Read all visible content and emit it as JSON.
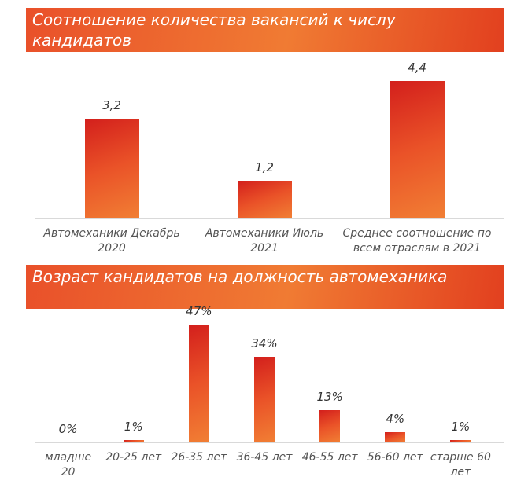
{
  "chart_data": [
    {
      "type": "bar",
      "title": "Соотношение количества вакансий к числу кандидатов",
      "categories": [
        "Автомеханики Декабрь 2020",
        "Автомеханики Июль 2021",
        "Среднее соотношение по всем отраслям в 2021"
      ],
      "values": [
        3.2,
        1.2,
        4.4
      ],
      "value_labels": [
        "3,2",
        "1,2",
        "4,4"
      ]
    },
    {
      "type": "bar",
      "title": "Возраст кандидатов на должность автомеханика",
      "categories": [
        "младше 20",
        "20-25 лет",
        "26-35 лет",
        "36-45 лет",
        "46-55 лет",
        "56-60 лет",
        "старше 60 лет"
      ],
      "values": [
        0,
        1,
        47,
        34,
        13,
        4,
        1
      ],
      "value_labels": [
        "0%",
        "1%",
        "47%",
        "34%",
        "13%",
        "4%",
        "1%"
      ]
    }
  ]
}
